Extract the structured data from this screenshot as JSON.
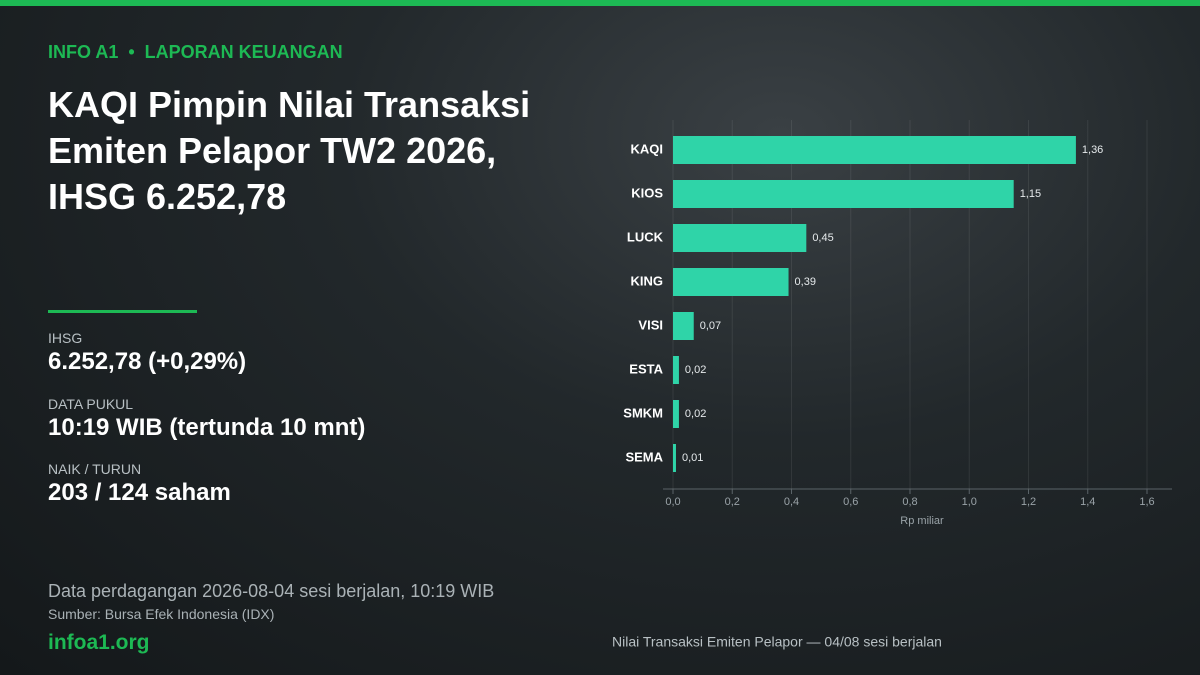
{
  "header": {
    "brand": "INFO A1",
    "section": "LAPORAN KEUANGAN",
    "title_lines": [
      "KAQI Pimpin Nilai Transaksi",
      "Emiten Pelapor TW2 2026,",
      "IHSG 6.252,78"
    ]
  },
  "stats": [
    {
      "label": "IHSG",
      "value": "6.252,78  (+0,29%)"
    },
    {
      "label": "DATA PUKUL",
      "value": "10:19 WIB (tertunda 10 mnt)"
    },
    {
      "label": "NAIK / TURUN",
      "value": "203 / 124 saham"
    }
  ],
  "footer": {
    "note": "Data perdagangan 2026-08-04 sesi berjalan, 10:19 WIB",
    "source": "Sumber: Bursa Efek Indonesia (IDX)",
    "site": "infoa1.org"
  },
  "chart_data": {
    "type": "bar",
    "orientation": "horizontal",
    "caption": "Nilai Transaksi Emiten Pelapor — 04/08 sesi berjalan",
    "xlabel": "Rp miliar",
    "categories": [
      "KAQI",
      "KIOS",
      "LUCK",
      "KING",
      "VISI",
      "ESTA",
      "SMKM",
      "SEMA"
    ],
    "values": [
      1.36,
      1.15,
      0.45,
      0.39,
      0.07,
      0.02,
      0.02,
      0.01
    ],
    "value_labels": [
      "1,36",
      "1,15",
      "0,45",
      "0,39",
      "0,07",
      "0,02",
      "0,02",
      "0,01"
    ],
    "color": "#2fd4a8",
    "xlim": [
      0,
      1.6
    ],
    "xticks": [
      {
        "value": 0,
        "label": "0,0"
      },
      {
        "value": 0.2,
        "label": "0,2"
      },
      {
        "value": 0.4,
        "label": "0,4"
      },
      {
        "value": 0.6,
        "label": "0,6"
      },
      {
        "value": 0.8,
        "label": "0,8"
      },
      {
        "value": 1,
        "label": "1,0"
      },
      {
        "value": 1.2,
        "label": "1,2"
      },
      {
        "value": 1.4,
        "label": "1,4"
      },
      {
        "value": 1.6,
        "label": "1,6"
      }
    ],
    "grid": true
  }
}
